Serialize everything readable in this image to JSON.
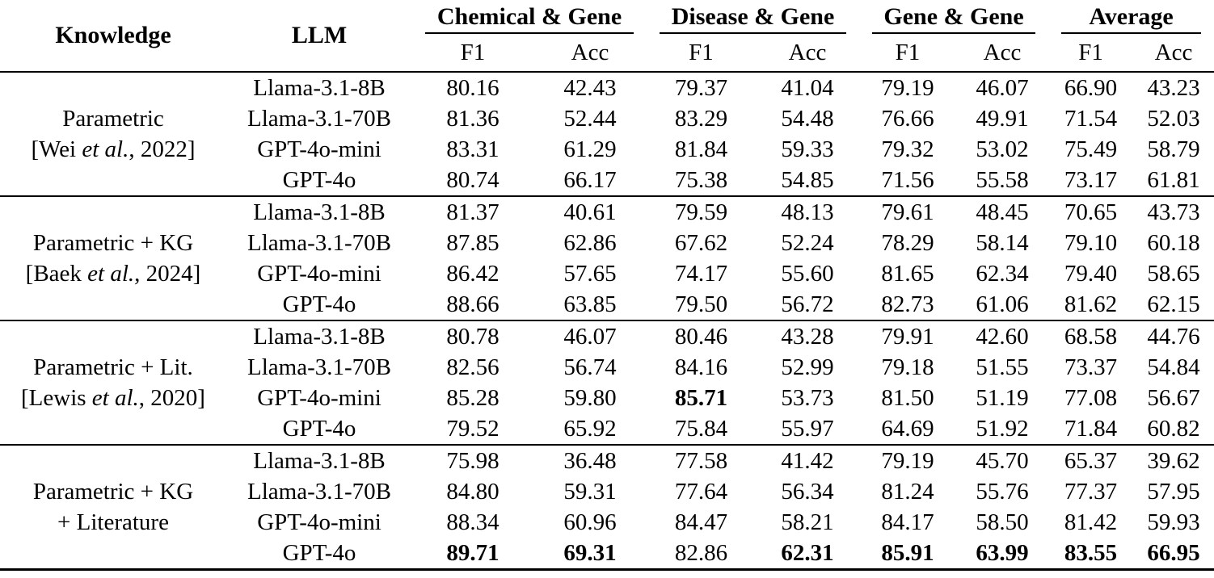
{
  "page": {
    "background_color": "#ffffff",
    "text_color": "#000000",
    "rule_color": "#000000"
  },
  "table": {
    "headers": {
      "knowledge": "Knowledge",
      "llm": "LLM"
    },
    "groups": [
      {
        "label": "Chemical & Gene"
      },
      {
        "label": "Disease & Gene"
      },
      {
        "label": "Gene & Gene"
      },
      {
        "label": "Average"
      }
    ],
    "subheaders": [
      "F1",
      "Acc"
    ],
    "row_groups": [
      {
        "knowledge": {
          "line1": "Parametric",
          "cite_prefix": "[Wei ",
          "cite_italic": "et al.",
          "cite_suffix": ", 2022]"
        },
        "rows": [
          {
            "llm": "Llama-3.1-8B",
            "values": [
              "80.16",
              "42.43",
              "79.37",
              "41.04",
              "79.19",
              "46.07",
              "66.90",
              "43.23"
            ],
            "bold": []
          },
          {
            "llm": "Llama-3.1-70B",
            "values": [
              "81.36",
              "52.44",
              "83.29",
              "54.48",
              "76.66",
              "49.91",
              "71.54",
              "52.03"
            ],
            "bold": []
          },
          {
            "llm": "GPT-4o-mini",
            "values": [
              "83.31",
              "61.29",
              "81.84",
              "59.33",
              "79.32",
              "53.02",
              "75.49",
              "58.79"
            ],
            "bold": []
          },
          {
            "llm": "GPT-4o",
            "values": [
              "80.74",
              "66.17",
              "75.38",
              "54.85",
              "71.56",
              "55.58",
              "73.17",
              "61.81"
            ],
            "bold": []
          }
        ]
      },
      {
        "knowledge": {
          "line1": "Parametric + KG",
          "cite_prefix": "[Baek ",
          "cite_italic": "et al.",
          "cite_suffix": ", 2024]"
        },
        "rows": [
          {
            "llm": "Llama-3.1-8B",
            "values": [
              "81.37",
              "40.61",
              "79.59",
              "48.13",
              "79.61",
              "48.45",
              "70.65",
              "43.73"
            ],
            "bold": []
          },
          {
            "llm": "Llama-3.1-70B",
            "values": [
              "87.85",
              "62.86",
              "67.62",
              "52.24",
              "78.29",
              "58.14",
              "79.10",
              "60.18"
            ],
            "bold": []
          },
          {
            "llm": "GPT-4o-mini",
            "values": [
              "86.42",
              "57.65",
              "74.17",
              "55.60",
              "81.65",
              "62.34",
              "79.40",
              "58.65"
            ],
            "bold": []
          },
          {
            "llm": "GPT-4o",
            "values": [
              "88.66",
              "63.85",
              "79.50",
              "56.72",
              "82.73",
              "61.06",
              "81.62",
              "62.15"
            ],
            "bold": []
          }
        ]
      },
      {
        "knowledge": {
          "line1": "Parametric + Lit.",
          "cite_prefix": "[Lewis ",
          "cite_italic": "et al.",
          "cite_suffix": ", 2020]"
        },
        "rows": [
          {
            "llm": "Llama-3.1-8B",
            "values": [
              "80.78",
              "46.07",
              "80.46",
              "43.28",
              "79.91",
              "42.60",
              "68.58",
              "44.76"
            ],
            "bold": []
          },
          {
            "llm": "Llama-3.1-70B",
            "values": [
              "82.56",
              "56.74",
              "84.16",
              "52.99",
              "79.18",
              "51.55",
              "73.37",
              "54.84"
            ],
            "bold": []
          },
          {
            "llm": "GPT-4o-mini",
            "values": [
              "85.28",
              "59.80",
              "85.71",
              "53.73",
              "81.50",
              "51.19",
              "77.08",
              "56.67"
            ],
            "bold": [
              2
            ]
          },
          {
            "llm": "GPT-4o",
            "values": [
              "79.52",
              "65.92",
              "75.84",
              "55.97",
              "64.69",
              "51.92",
              "71.84",
              "60.82"
            ],
            "bold": []
          }
        ]
      },
      {
        "knowledge": {
          "line1": "Parametric + KG",
          "cite_prefix": "+ Literature",
          "cite_italic": "",
          "cite_suffix": ""
        },
        "rows": [
          {
            "llm": "Llama-3.1-8B",
            "values": [
              "75.98",
              "36.48",
              "77.58",
              "41.42",
              "79.19",
              "45.70",
              "65.37",
              "39.62"
            ],
            "bold": []
          },
          {
            "llm": "Llama-3.1-70B",
            "values": [
              "84.80",
              "59.31",
              "77.64",
              "56.34",
              "81.24",
              "55.76",
              "77.37",
              "57.95"
            ],
            "bold": []
          },
          {
            "llm": "GPT-4o-mini",
            "values": [
              "88.34",
              "60.96",
              "84.47",
              "58.21",
              "84.17",
              "58.50",
              "81.42",
              "59.93"
            ],
            "bold": []
          },
          {
            "llm": "GPT-4o",
            "values": [
              "89.71",
              "69.31",
              "82.86",
              "62.31",
              "85.91",
              "63.99",
              "83.55",
              "66.95"
            ],
            "bold": [
              0,
              1,
              3,
              4,
              5,
              6,
              7
            ]
          }
        ]
      }
    ]
  }
}
